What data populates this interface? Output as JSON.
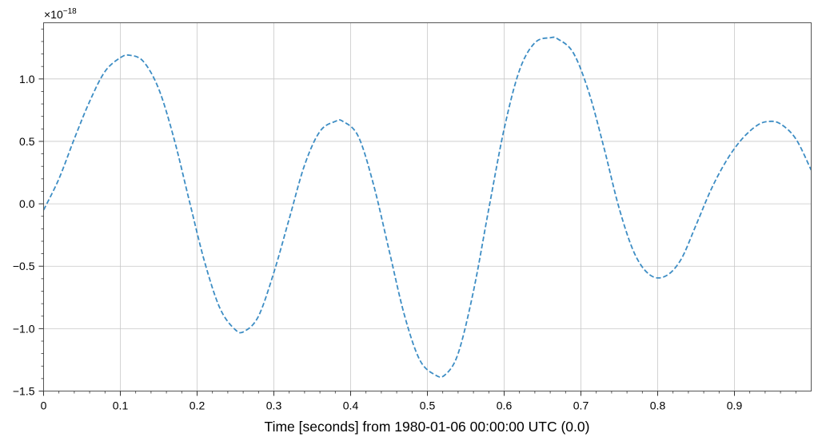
{
  "chart_data": {
    "type": "line",
    "title": "",
    "xlabel": "Time [seconds] from 1980-01-06 00:00:00 UTC (0.0)",
    "ylabel": "",
    "y_offset_label": {
      "base": "×10",
      "exponent": "−18"
    },
    "xlim": [
      0,
      1.0
    ],
    "ylim": [
      -1.5,
      1.45
    ],
    "x_ticks": [
      0,
      0.1,
      0.2,
      0.3,
      0.4,
      0.5,
      0.6,
      0.7,
      0.8,
      0.9
    ],
    "x_tick_labels": [
      "0",
      "0.1",
      "0.2",
      "0.3",
      "0.4",
      "0.5",
      "0.6",
      "0.7",
      "0.8",
      "0.9"
    ],
    "y_ticks": [
      -1.5,
      -1.0,
      -0.5,
      0.0,
      0.5,
      1.0
    ],
    "y_tick_labels": [
      "−1.5",
      "−1.0",
      "−0.5",
      "0.0",
      "0.5",
      "1.0"
    ],
    "y_unit_multiplier": 1e-18,
    "grid": true,
    "line_style": "dashed",
    "series": [
      {
        "color": "#3d8dc4",
        "x": [
          0.0,
          0.02,
          0.04,
          0.06,
          0.08,
          0.1,
          0.112,
          0.13,
          0.15,
          0.17,
          0.19,
          0.21,
          0.23,
          0.25,
          0.262,
          0.28,
          0.3,
          0.32,
          0.34,
          0.36,
          0.38,
          0.39,
          0.41,
          0.43,
          0.45,
          0.47,
          0.49,
          0.51,
          0.523,
          0.54,
          0.56,
          0.58,
          0.6,
          0.62,
          0.64,
          0.66,
          0.67,
          0.69,
          0.71,
          0.73,
          0.75,
          0.77,
          0.79,
          0.81,
          0.83,
          0.85,
          0.87,
          0.89,
          0.91,
          0.93,
          0.945,
          0.96,
          0.98,
          1.0
        ],
        "y": [
          -0.05,
          0.2,
          0.52,
          0.82,
          1.06,
          1.17,
          1.19,
          1.14,
          0.92,
          0.52,
          0.02,
          -0.47,
          -0.84,
          -1.01,
          -1.02,
          -0.9,
          -0.55,
          -0.12,
          0.31,
          0.58,
          0.66,
          0.66,
          0.54,
          0.15,
          -0.37,
          -0.89,
          -1.25,
          -1.37,
          -1.37,
          -1.2,
          -0.7,
          -0.04,
          0.6,
          1.07,
          1.29,
          1.33,
          1.32,
          1.21,
          0.9,
          0.45,
          -0.04,
          -0.4,
          -0.57,
          -0.58,
          -0.45,
          -0.17,
          0.12,
          0.35,
          0.52,
          0.63,
          0.66,
          0.64,
          0.52,
          0.27
        ]
      }
    ]
  }
}
